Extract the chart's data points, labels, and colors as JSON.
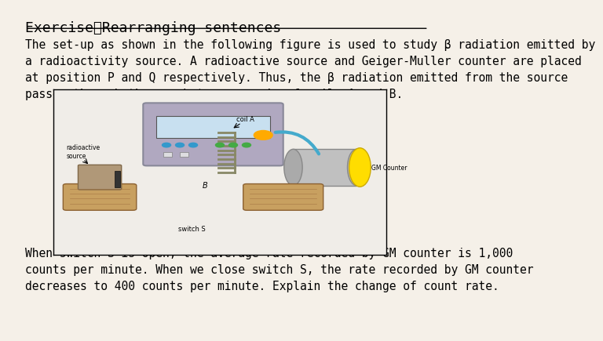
{
  "background_color": "#f5f0e8",
  "text_color": "#000000",
  "title": "Exercise：Rearranging sentences",
  "title_fontsize": 13,
  "paragraph1_line1": "The set-up as shown in the following figure is used to study β radiation emitted by",
  "paragraph1_line2": "a radioactivity source. A radioactive source and Geiger-Muller counter are placed",
  "paragraph1_line3": "at position P and Q respectively. Thus, the β radiation emitted from the source",
  "paragraph1_line4": "passes through the gap between a pair of coils A and B.",
  "paragraph2_line1": "When switch S is open, the average rate recorded by GM counter is 1,000",
  "paragraph2_line2": "counts per minute. When we close switch S, the rate recorded by GM counter",
  "paragraph2_line3": "decreases to 400 counts per minute. Explain the change of count rate."
}
